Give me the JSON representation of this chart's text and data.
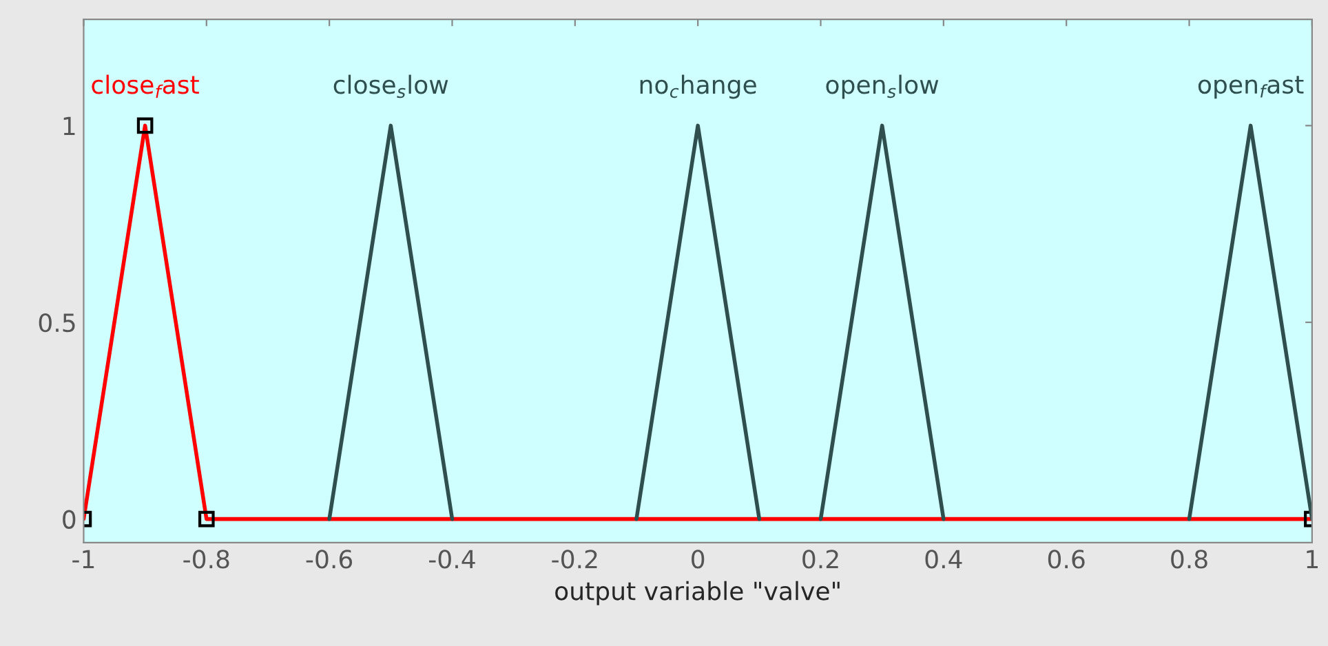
{
  "chart_data": {
    "type": "line",
    "xlabel": "output variable \"valve\"",
    "xlim": [
      -1,
      1
    ],
    "ylim": [
      -0.06,
      1.27
    ],
    "xticks": [
      -1,
      -0.8,
      -0.6,
      -0.4,
      -0.2,
      0,
      0.2,
      0.4,
      0.6,
      0.8,
      1
    ],
    "yticks": [
      0,
      0.5,
      1
    ],
    "grid": false,
    "legend": false,
    "series": [
      {
        "name": "close$_{f}$ast",
        "color": "#ff0000",
        "marker": "square",
        "x": [
          -1,
          -0.9,
          -0.8,
          1
        ],
        "values": [
          0,
          1,
          0,
          0
        ]
      },
      {
        "name": "close$_{s}$low",
        "color": "#2f4f4f",
        "marker": "none",
        "x": [
          -0.6,
          -0.5,
          -0.4
        ],
        "values": [
          0,
          1,
          0
        ]
      },
      {
        "name": "no$_{c}$hange",
        "color": "#2f4f4f",
        "marker": "none",
        "x": [
          -0.1,
          0,
          0.1
        ],
        "values": [
          0,
          1,
          0
        ]
      },
      {
        "name": "open$_{s}$low",
        "color": "#2f4f4f",
        "marker": "none",
        "x": [
          0.2,
          0.3,
          0.4
        ],
        "values": [
          0,
          1,
          0
        ]
      },
      {
        "name": "open$_{f}$ast",
        "color": "#2f4f4f",
        "marker": "none",
        "x": [
          0.8,
          0.9,
          1
        ],
        "values": [
          0,
          1,
          0
        ]
      }
    ]
  }
}
